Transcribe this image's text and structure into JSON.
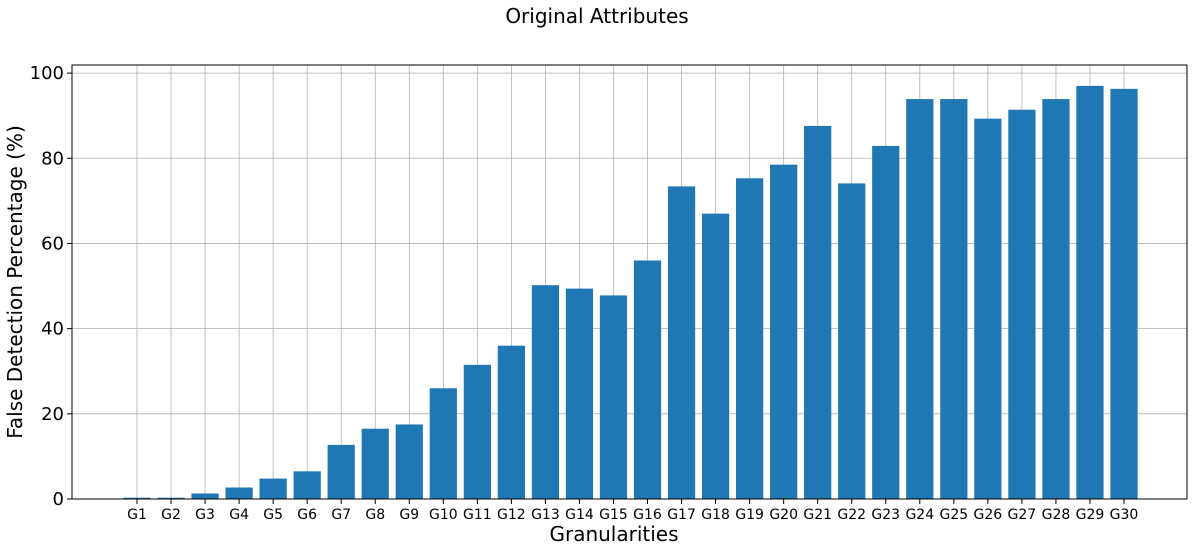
{
  "chart_data": {
    "type": "bar",
    "title": "Original Attributes",
    "xlabel": "Granularities",
    "ylabel": "False Detection Percentage (%)",
    "categories": [
      "G1",
      "G2",
      "G3",
      "G4",
      "G5",
      "G6",
      "G7",
      "G8",
      "G9",
      "G10",
      "G11",
      "G12",
      "G13",
      "G14",
      "G15",
      "G16",
      "G17",
      "G18",
      "G19",
      "G20",
      "G21",
      "G22",
      "G23",
      "G24",
      "G25",
      "G26",
      "G27",
      "G28",
      "G29",
      "G30"
    ],
    "values": [
      0.3,
      0.3,
      1.3,
      2.7,
      4.8,
      6.5,
      12.7,
      16.5,
      17.5,
      26.0,
      31.5,
      36.0,
      50.2,
      49.4,
      47.8,
      56.0,
      73.4,
      67.0,
      75.3,
      78.5,
      87.6,
      74.1,
      82.9,
      93.9,
      93.9,
      89.3,
      91.4,
      93.9,
      97.0,
      96.3
    ],
    "yticks": [
      0,
      20,
      40,
      60,
      80,
      100
    ],
    "ylim": [
      0,
      101.9
    ],
    "grid": true,
    "bar_color": "#1f77b4"
  }
}
